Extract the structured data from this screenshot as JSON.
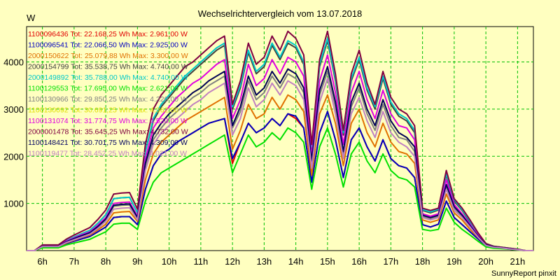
{
  "chart_data": {
    "type": "line",
    "title": "Wechselrichtervergleich vom 13.07.2018",
    "ylabel": "W",
    "footer": "SunnyReport pinxit",
    "xlim": [
      5.5,
      21.5
    ],
    "ylim": [
      0,
      4750
    ],
    "grid": true,
    "legend_position": "top-left",
    "x_ticks": [
      {
        "value": 6,
        "label": "6h"
      },
      {
        "value": 7,
        "label": "7h"
      },
      {
        "value": 8,
        "label": "8h"
      },
      {
        "value": 9,
        "label": "9h"
      },
      {
        "value": 10,
        "label": "10h"
      },
      {
        "value": 11,
        "label": "11h"
      },
      {
        "value": 12,
        "label": "12h"
      },
      {
        "value": 13,
        "label": "13h"
      },
      {
        "value": 14,
        "label": "14h"
      },
      {
        "value": 15,
        "label": "15h"
      },
      {
        "value": 16,
        "label": "16h"
      },
      {
        "value": 17,
        "label": "17h"
      },
      {
        "value": 18,
        "label": "18h"
      },
      {
        "value": 19,
        "label": "19h"
      },
      {
        "value": 20,
        "label": "20h"
      },
      {
        "value": 21,
        "label": "21h"
      }
    ],
    "y_ticks": [
      {
        "value": 1000,
        "label": "1000"
      },
      {
        "value": 2000,
        "label": "2000"
      },
      {
        "value": 3000,
        "label": "3000"
      },
      {
        "value": 4000,
        "label": "4000"
      }
    ],
    "x": [
      5.5,
      5.75,
      6.0,
      6.25,
      6.5,
      6.75,
      7.0,
      7.25,
      7.5,
      7.75,
      8.0,
      8.25,
      8.5,
      8.75,
      9.0,
      9.25,
      9.5,
      9.75,
      10.0,
      10.25,
      10.5,
      10.75,
      11.0,
      11.25,
      11.5,
      11.75,
      12.0,
      12.25,
      12.5,
      12.75,
      13.0,
      13.25,
      13.5,
      13.75,
      14.0,
      14.25,
      14.5,
      14.75,
      15.0,
      15.25,
      15.5,
      15.75,
      16.0,
      16.25,
      16.5,
      16.75,
      17.0,
      17.25,
      17.5,
      17.75,
      18.0,
      18.25,
      18.5,
      18.75,
      19.0,
      19.25,
      19.5,
      19.75,
      20.0,
      20.25,
      20.5,
      20.75,
      21.0,
      21.25,
      21.5
    ],
    "series": [
      {
        "name": "1100096436 Tot: 22.168,25 Wh Max: 2.961,00 W",
        "color": "#e00000",
        "values": [
          0,
          0,
          80,
          80,
          80,
          150,
          200,
          250,
          300,
          400,
          500,
          700,
          720,
          720,
          550,
          1300,
          1800,
          2050,
          2150,
          2300,
          2400,
          2500,
          2600,
          2700,
          2750,
          2800,
          1850,
          2300,
          2700,
          2500,
          2600,
          2800,
          2650,
          2900,
          2800,
          2600,
          1450,
          2500,
          2950,
          2350,
          1550,
          2350,
          2600,
          2200,
          1900,
          2350,
          1950,
          1800,
          1750,
          1550,
          550,
          500,
          560,
          1050,
          700,
          550,
          400,
          250,
          100,
          60,
          50,
          30,
          20,
          0,
          0
        ]
      },
      {
        "name": "1100096541 Tot: 22.066,50 Wh Max: 2.925,00 W",
        "color": "#0000c0",
        "values": [
          0,
          0,
          80,
          80,
          80,
          150,
          200,
          250,
          300,
          400,
          500,
          700,
          720,
          720,
          550,
          1300,
          1800,
          2050,
          2150,
          2300,
          2400,
          2500,
          2600,
          2700,
          2750,
          2800,
          1950,
          2300,
          2700,
          2500,
          2600,
          2800,
          2650,
          2900,
          2850,
          2600,
          1450,
          2500,
          2950,
          2350,
          1550,
          2350,
          2600,
          2200,
          1900,
          2350,
          1950,
          1800,
          1750,
          1550,
          550,
          500,
          560,
          1050,
          700,
          550,
          400,
          250,
          100,
          60,
          50,
          30,
          20,
          0,
          0
        ]
      },
      {
        "name": "2000150622 Tot: 25.079,88 Wh Max: 3.300,00 W",
        "color": "#e07000",
        "values": [
          0,
          0,
          80,
          80,
          80,
          160,
          220,
          280,
          330,
          440,
          560,
          800,
          820,
          830,
          620,
          1500,
          2050,
          2300,
          2450,
          2600,
          2750,
          2850,
          2950,
          3050,
          3150,
          3250,
          2150,
          2550,
          3100,
          2800,
          2900,
          3250,
          3000,
          3300,
          3200,
          2950,
          1600,
          2900,
          3300,
          2700,
          1800,
          2700,
          3000,
          2500,
          2200,
          2700,
          2300,
          2100,
          2050,
          1850,
          650,
          600,
          650,
          1200,
          800,
          650,
          450,
          280,
          110,
          70,
          60,
          40,
          20,
          0,
          0
        ]
      },
      {
        "name": "2000154799 Tot: 35.538,75 Wh Max: 4.740,00 W",
        "color": "#404040",
        "values": [
          0,
          0,
          100,
          100,
          100,
          210,
          290,
          360,
          430,
          580,
          760,
          1100,
          1120,
          1130,
          800,
          2100,
          2750,
          3050,
          3250,
          3450,
          3650,
          3800,
          3950,
          4100,
          4250,
          4350,
          3000,
          3450,
          4200,
          3750,
          3900,
          4350,
          4050,
          4400,
          4300,
          3950,
          2150,
          3900,
          4450,
          3600,
          2450,
          3600,
          4050,
          3400,
          3000,
          3650,
          3100,
          2850,
          2750,
          2500,
          850,
          800,
          860,
          1600,
          1050,
          850,
          600,
          350,
          140,
          90,
          70,
          50,
          30,
          0,
          0
        ]
      },
      {
        "name": "2000149892 Tot: 35.788,00 Wh Max: 4.740,00 W",
        "color": "#00c8c8",
        "values": [
          0,
          0,
          100,
          100,
          100,
          210,
          290,
          360,
          430,
          580,
          760,
          1100,
          1120,
          1130,
          800,
          2100,
          2800,
          3100,
          3300,
          3500,
          3700,
          3850,
          4000,
          4150,
          4300,
          4400,
          3050,
          3500,
          4250,
          3800,
          3950,
          4400,
          4100,
          4450,
          4350,
          4000,
          2200,
          3950,
          4500,
          3650,
          2500,
          3650,
          4100,
          3450,
          3050,
          3700,
          3150,
          2900,
          2800,
          2550,
          870,
          820,
          880,
          1630,
          1080,
          870,
          620,
          360,
          150,
          90,
          70,
          50,
          30,
          0,
          0
        ]
      },
      {
        "name": "1100129553 Tot: 17.695,00 Wh Max: 2.621,00 W",
        "color": "#00e000",
        "values": [
          0,
          0,
          60,
          60,
          60,
          120,
          160,
          200,
          240,
          320,
          400,
          560,
          580,
          580,
          450,
          1050,
          1450,
          1650,
          1750,
          1850,
          1950,
          2050,
          2150,
          2250,
          2350,
          2450,
          1650,
          2050,
          2450,
          2200,
          2300,
          2500,
          2350,
          2600,
          2500,
          2300,
          1300,
          2200,
          2600,
          2050,
          1350,
          2050,
          2300,
          1900,
          1650,
          2050,
          1700,
          1550,
          1500,
          1350,
          450,
          420,
          450,
          900,
          600,
          450,
          330,
          200,
          80,
          50,
          40,
          30,
          10,
          0,
          0
        ]
      },
      {
        "name": "1100130966 Tot: 29.850,25 Wh Max: 4.220,00 W",
        "color": "#808080",
        "values": [
          0,
          0,
          90,
          90,
          90,
          180,
          250,
          310,
          370,
          500,
          650,
          940,
          960,
          970,
          690,
          1800,
          2350,
          2600,
          2800,
          2950,
          3100,
          3250,
          3350,
          3500,
          3600,
          3700,
          2600,
          2950,
          3600,
          3200,
          3350,
          3700,
          3450,
          3750,
          3650,
          3350,
          1850,
          3300,
          3800,
          3050,
          2050,
          3050,
          3450,
          2900,
          2550,
          3100,
          2650,
          2400,
          2350,
          2100,
          730,
          680,
          730,
          1350,
          900,
          730,
          520,
          300,
          120,
          75,
          60,
          40,
          20,
          0,
          0
        ]
      },
      {
        "name": "1100130092 Tot: 30.691,25 Wh Max: 4.362,00 W",
        "color": "#e0e000",
        "values": [
          0,
          0,
          90,
          90,
          90,
          190,
          260,
          320,
          380,
          510,
          670,
          960,
          980,
          990,
          700,
          1850,
          2450,
          2700,
          2900,
          3050,
          3200,
          3350,
          3450,
          3600,
          3700,
          3800,
          2650,
          3050,
          3700,
          3300,
          3450,
          3800,
          3550,
          3850,
          3750,
          3450,
          1900,
          3400,
          3900,
          3150,
          2100,
          3150,
          3550,
          3000,
          2650,
          3200,
          2750,
          2500,
          2400,
          2200,
          750,
          700,
          750,
          1400,
          930,
          750,
          530,
          310,
          120,
          80,
          60,
          40,
          20,
          0,
          0
        ]
      },
      {
        "name": "1100131074 Tot: 31.774,75 Wh Max: 4.520,00 W",
        "color": "#e000e0",
        "values": [
          0,
          0,
          95,
          95,
          95,
          200,
          270,
          340,
          400,
          540,
          700,
          1000,
          1020,
          1030,
          730,
          1950,
          2600,
          2850,
          3050,
          3250,
          3400,
          3550,
          3650,
          3800,
          3950,
          4050,
          2800,
          3200,
          3950,
          3500,
          3650,
          4050,
          3750,
          4100,
          4000,
          3700,
          2000,
          3600,
          4150,
          3350,
          2250,
          3350,
          3800,
          3200,
          2800,
          3400,
          2900,
          2650,
          2600,
          2350,
          780,
          730,
          780,
          1500,
          980,
          780,
          560,
          330,
          130,
          80,
          60,
          40,
          20,
          0,
          0
        ]
      },
      {
        "name": "2000001478 Tot: 35.645,25 Wh Max: 4.732,00 W",
        "color": "#800040",
        "values": [
          0,
          0,
          120,
          120,
          120,
          240,
          330,
          410,
          490,
          660,
          860,
          1200,
          1220,
          1230,
          880,
          2250,
          3000,
          3300,
          3500,
          3700,
          3900,
          4000,
          4150,
          4300,
          4450,
          4550,
          3100,
          3600,
          4400,
          3950,
          4100,
          4550,
          4250,
          4650,
          4500,
          4150,
          2250,
          4050,
          4650,
          3750,
          2550,
          3750,
          4250,
          3550,
          3100,
          3800,
          3250,
          3000,
          2900,
          2650,
          900,
          850,
          900,
          1700,
          1100,
          900,
          650,
          380,
          150,
          90,
          70,
          50,
          30,
          0,
          0
        ]
      },
      {
        "name": "1100148421 Tot: 30.701,75 Wh Max: 4.309,00 W",
        "color": "#000060",
        "values": [
          0,
          0,
          90,
          90,
          90,
          185,
          255,
          320,
          380,
          510,
          670,
          960,
          980,
          990,
          700,
          1850,
          2450,
          2700,
          2900,
          3050,
          3200,
          3350,
          3450,
          3600,
          3700,
          3800,
          2650,
          3050,
          3700,
          3300,
          3450,
          3800,
          3550,
          3850,
          3750,
          3450,
          1900,
          3400,
          3900,
          3150,
          2100,
          3150,
          3550,
          3000,
          2650,
          3200,
          2750,
          2500,
          2400,
          2200,
          750,
          700,
          750,
          1400,
          930,
          750,
          530,
          310,
          120,
          80,
          60,
          40,
          20,
          0,
          0
        ]
      },
      {
        "name": "1100119477 Tot: 28.452,25 Wh Max: 4.021,00 W",
        "color": "#c080c0",
        "values": [
          0,
          0,
          85,
          85,
          85,
          170,
          230,
          290,
          350,
          470,
          620,
          880,
          900,
          910,
          650,
          1700,
          2250,
          2500,
          2650,
          2800,
          2950,
          3100,
          3200,
          3350,
          3450,
          3550,
          2450,
          2800,
          3450,
          3050,
          3200,
          3550,
          3300,
          3600,
          3500,
          3200,
          1750,
          3150,
          3650,
          2900,
          1950,
          2900,
          3250,
          2750,
          2400,
          2950,
          2500,
          2300,
          2200,
          2000,
          700,
          650,
          700,
          1300,
          850,
          700,
          500,
          290,
          110,
          70,
          55,
          35,
          20,
          0,
          0
        ]
      }
    ]
  }
}
